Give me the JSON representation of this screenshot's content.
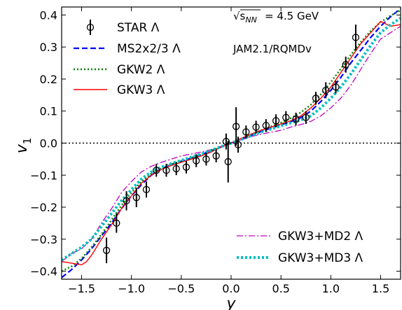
{
  "chart_data": {
    "type": "line",
    "xlabel": "y",
    "ylabel": "v",
    "ylabel_sub": "1",
    "xlim": [
      -1.7,
      1.7
    ],
    "ylim": [
      -0.425,
      0.425
    ],
    "xticks": [
      -1.5,
      -1.0,
      -0.5,
      0.0,
      0.5,
      1.0,
      1.5
    ],
    "xtick_labels": [
      "−1.5",
      "−1.0",
      "−0.5",
      "0.0",
      "0.5",
      "1.0",
      "1.5"
    ],
    "yticks": [
      -0.4,
      -0.3,
      -0.2,
      -0.1,
      0.0,
      0.1,
      0.2,
      0.3,
      0.4
    ],
    "ytick_labels": [
      "−0.4",
      "−0.3",
      "−0.2",
      "−0.1",
      "0.0",
      "0.1",
      "0.2",
      "0.3",
      "0.4"
    ],
    "reference_line": {
      "y": 0.0,
      "style": "dotted",
      "color": "#000000"
    },
    "annotations": [
      {
        "text": "= 4.5 GeV",
        "prefix": "√s",
        "prefix_sub": "NN"
      },
      {
        "text": "JAM2.1/RQMDv"
      }
    ],
    "legend_upper": [
      {
        "series": "STAR",
        "label": "STAR Λ"
      },
      {
        "series": "MS2x2/3",
        "label": "MS2x2/3 Λ"
      },
      {
        "series": "GKW2",
        "label": "GKW2 Λ"
      },
      {
        "series": "GKW3",
        "label": "GKW3 Λ"
      }
    ],
    "legend_lower": [
      {
        "series": "GKW3+MD2",
        "label": "GKW3+MD2 Λ"
      },
      {
        "series": "GKW3+MD3",
        "label": "GKW3+MD3  Λ"
      }
    ],
    "series": [
      {
        "name": "STAR Λ",
        "id": "STAR",
        "kind": "errorbar",
        "color": "#000000",
        "x": [
          -1.25,
          -1.15,
          -1.05,
          -0.95,
          -0.85,
          -0.75,
          -0.65,
          -0.55,
          -0.45,
          -0.35,
          -0.25,
          -0.15,
          -0.05,
          -0.03,
          0.05,
          0.07,
          0.15,
          0.25,
          0.35,
          0.45,
          0.55,
          0.65,
          0.75,
          0.85,
          0.95,
          1.05,
          1.15,
          1.25
        ],
        "y": [
          -0.335,
          -0.25,
          -0.18,
          -0.17,
          -0.145,
          -0.085,
          -0.085,
          -0.08,
          -0.075,
          -0.055,
          -0.05,
          -0.04,
          0.005,
          -0.058,
          0.052,
          -0.005,
          0.035,
          0.05,
          0.055,
          0.07,
          0.08,
          0.075,
          0.08,
          0.14,
          0.165,
          0.175,
          0.245,
          0.33
        ],
        "err": [
          0.04,
          0.03,
          0.03,
          0.03,
          0.025,
          0.02,
          0.02,
          0.02,
          0.02,
          0.02,
          0.02,
          0.02,
          0.025,
          0.065,
          0.06,
          0.025,
          0.02,
          0.02,
          0.02,
          0.02,
          0.02,
          0.02,
          0.02,
          0.02,
          0.025,
          0.02,
          0.025,
          0.04
        ]
      },
      {
        "name": "MS2x2/3 Λ",
        "id": "MS2x2/3",
        "kind": "line",
        "color": "#0000ff",
        "dash": "dashed",
        "x": [
          -1.7,
          -1.6,
          -1.5,
          -1.4,
          -1.3,
          -1.2,
          -1.1,
          -1.0,
          -0.9,
          -0.8,
          -0.7,
          -0.6,
          -0.5,
          -0.4,
          -0.3,
          -0.2,
          -0.1,
          0.0,
          0.1,
          0.2,
          0.3,
          0.4,
          0.5,
          0.6,
          0.7,
          0.8,
          0.9,
          1.0,
          1.1,
          1.2,
          1.3,
          1.4,
          1.5,
          1.6,
          1.7
        ],
        "y": [
          -0.42,
          -0.395,
          -0.365,
          -0.33,
          -0.29,
          -0.25,
          -0.205,
          -0.165,
          -0.13,
          -0.1,
          -0.08,
          -0.067,
          -0.057,
          -0.047,
          -0.036,
          -0.024,
          -0.012,
          0.0,
          0.012,
          0.024,
          0.036,
          0.047,
          0.057,
          0.067,
          0.08,
          0.1,
          0.13,
          0.165,
          0.205,
          0.25,
          0.29,
          0.33,
          0.365,
          0.395,
          0.42
        ]
      },
      {
        "name": "GKW2 Λ",
        "id": "GKW2",
        "kind": "line",
        "color": "#008000",
        "dash": "dotted",
        "x": [
          -1.7,
          -1.6,
          -1.5,
          -1.4,
          -1.3,
          -1.2,
          -1.1,
          -1.0,
          -0.9,
          -0.8,
          -0.7,
          -0.6,
          -0.5,
          -0.4,
          -0.3,
          -0.2,
          -0.1,
          0.0,
          0.1,
          0.2,
          0.3,
          0.4,
          0.5,
          0.6,
          0.7,
          0.8,
          0.9,
          1.0,
          1.1,
          1.2,
          1.3,
          1.4,
          1.5,
          1.6,
          1.7
        ],
        "y": [
          -0.4,
          -0.385,
          -0.36,
          -0.325,
          -0.285,
          -0.24,
          -0.195,
          -0.155,
          -0.12,
          -0.095,
          -0.078,
          -0.066,
          -0.056,
          -0.046,
          -0.035,
          -0.024,
          -0.012,
          0.0,
          0.013,
          0.027,
          0.04,
          0.052,
          0.064,
          0.078,
          0.096,
          0.12,
          0.152,
          0.19,
          0.232,
          0.275,
          0.315,
          0.35,
          0.378,
          0.398,
          0.415
        ]
      },
      {
        "name": "GKW3 Λ",
        "id": "GKW3",
        "kind": "line",
        "color": "#ff0000",
        "dash": "solid",
        "x": [
          -1.7,
          -1.6,
          -1.5,
          -1.45,
          -1.4,
          -1.3,
          -1.2,
          -1.1,
          -1.0,
          -0.9,
          -0.8,
          -0.7,
          -0.6,
          -0.5,
          -0.4,
          -0.3,
          -0.2,
          -0.1,
          0.0,
          0.1,
          0.2,
          0.3,
          0.4,
          0.5,
          0.6,
          0.7,
          0.8,
          0.9,
          1.0,
          1.1,
          1.2,
          1.3,
          1.4,
          1.5,
          1.6,
          1.7
        ],
        "y": [
          -0.37,
          -0.375,
          -0.38,
          -0.37,
          -0.35,
          -0.3,
          -0.255,
          -0.205,
          -0.165,
          -0.125,
          -0.1,
          -0.082,
          -0.07,
          -0.06,
          -0.05,
          -0.04,
          -0.028,
          -0.012,
          0.0,
          0.015,
          0.028,
          0.04,
          0.05,
          0.06,
          0.07,
          0.085,
          0.11,
          0.14,
          0.175,
          0.22,
          0.265,
          0.31,
          0.345,
          0.38,
          0.365,
          0.37
        ]
      },
      {
        "name": "GKW3+MD2 Λ",
        "id": "GKW3+MD2",
        "kind": "line",
        "color": "#bf00bf",
        "dash": "dashdot",
        "x": [
          -1.7,
          -1.6,
          -1.5,
          -1.4,
          -1.3,
          -1.2,
          -1.1,
          -1.0,
          -0.9,
          -0.8,
          -0.7,
          -0.6,
          -0.5,
          -0.4,
          -0.3,
          -0.2,
          -0.1,
          0.0,
          0.1,
          0.2,
          0.3,
          0.4,
          0.5,
          0.6,
          0.7,
          0.8,
          0.9,
          1.0,
          1.1,
          1.2,
          1.3,
          1.4,
          1.5,
          1.6,
          1.7
        ],
        "y": [
          -0.37,
          -0.345,
          -0.33,
          -0.3,
          -0.25,
          -0.205,
          -0.155,
          -0.12,
          -0.09,
          -0.072,
          -0.06,
          -0.05,
          -0.04,
          -0.034,
          -0.028,
          -0.02,
          -0.01,
          0.0,
          0.01,
          0.02,
          0.028,
          0.034,
          0.04,
          0.05,
          0.058,
          0.068,
          0.085,
          0.11,
          0.14,
          0.18,
          0.23,
          0.28,
          0.325,
          0.345,
          0.365
        ]
      },
      {
        "name": "GKW3+MD3  Λ",
        "id": "GKW3+MD3",
        "kind": "line",
        "color": "#00bfbf",
        "dash": "dotted-thick",
        "x": [
          -1.7,
          -1.6,
          -1.5,
          -1.4,
          -1.3,
          -1.2,
          -1.1,
          -1.0,
          -0.9,
          -0.8,
          -0.7,
          -0.6,
          -0.5,
          -0.4,
          -0.3,
          -0.2,
          -0.1,
          0.0,
          0.1,
          0.2,
          0.3,
          0.4,
          0.5,
          0.6,
          0.7,
          0.8,
          0.9,
          1.0,
          1.1,
          1.2,
          1.3,
          1.4,
          1.5,
          1.6,
          1.7
        ],
        "y": [
          -0.365,
          -0.345,
          -0.325,
          -0.3,
          -0.26,
          -0.22,
          -0.18,
          -0.145,
          -0.112,
          -0.09,
          -0.075,
          -0.064,
          -0.054,
          -0.044,
          -0.034,
          -0.023,
          -0.011,
          0.0,
          0.011,
          0.023,
          0.034,
          0.044,
          0.054,
          0.063,
          0.072,
          0.085,
          0.11,
          0.14,
          0.175,
          0.215,
          0.26,
          0.305,
          0.345,
          0.37,
          0.39
        ]
      }
    ]
  }
}
